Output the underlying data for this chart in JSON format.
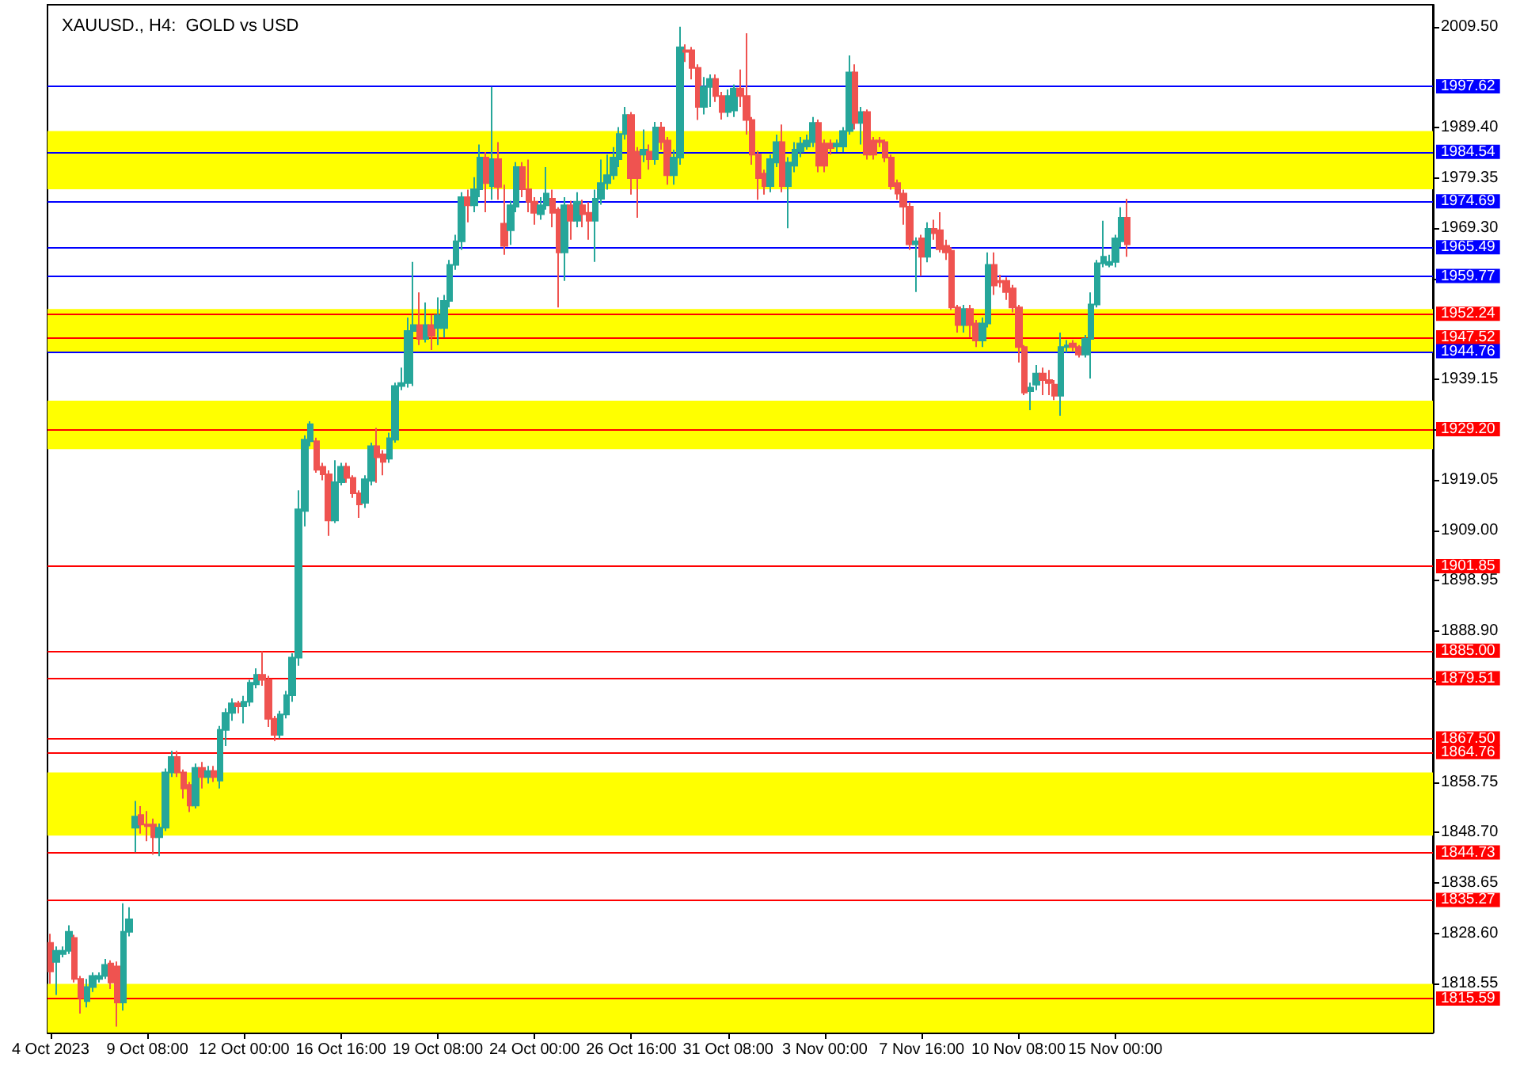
{
  "chart_data": {
    "type": "candlestick",
    "title": "XAUUSD., H4:  GOLD vs USD",
    "categories": [
      "4 Oct 2023",
      null,
      null,
      null,
      null,
      null,
      null,
      null,
      null,
      null,
      null,
      null,
      null,
      null,
      null,
      null,
      "9 Oct 08:00",
      null,
      null,
      null,
      null,
      null,
      null,
      null,
      null,
      null,
      null,
      null,
      null,
      null,
      null,
      null,
      "12 Oct 00:00",
      null,
      null,
      null,
      null,
      null,
      null,
      null,
      null,
      null,
      null,
      null,
      null,
      null,
      null,
      null,
      "16 Oct 16:00",
      null,
      null,
      null,
      null,
      null,
      null,
      null,
      null,
      null,
      null,
      null,
      null,
      null,
      null,
      null,
      "19 Oct 08:00",
      null,
      null,
      null,
      null,
      null,
      null,
      null,
      null,
      null,
      null,
      null,
      null,
      null,
      null,
      null,
      "24 Oct 00:00",
      null,
      null,
      null,
      null,
      null,
      null,
      null,
      null,
      null,
      null,
      null,
      null,
      null,
      null,
      null,
      "26 Oct 16:00",
      null,
      null,
      null,
      null,
      null,
      null,
      null,
      null,
      null,
      null,
      null,
      null,
      null,
      null,
      null,
      "31 Oct 08:00",
      null,
      null,
      null,
      null,
      null,
      null,
      null,
      null,
      null,
      null,
      null,
      null,
      null,
      null,
      null,
      "3 Nov 00:00",
      null,
      null,
      null,
      null,
      null,
      null,
      null,
      null,
      null,
      null,
      null,
      null,
      null,
      null,
      null,
      "7 Nov 16:00",
      null,
      null,
      null,
      null,
      null,
      null,
      null,
      null,
      null,
      null,
      null,
      null,
      null,
      null,
      null,
      "10 Nov 08:00",
      null,
      null,
      null,
      null,
      null,
      null,
      null,
      null,
      null,
      null,
      null,
      null,
      null,
      null,
      null,
      "15 Nov 00:00",
      null,
      null,
      null,
      null,
      null,
      null,
      null,
      null,
      null,
      null,
      null,
      null,
      null,
      null,
      null,
      null,
      null,
      null,
      null,
      null,
      null,
      null,
      null,
      null,
      null,
      null,
      null,
      null,
      null,
      null,
      null,
      null,
      null,
      null,
      null,
      null,
      null,
      null,
      null,
      null,
      null,
      null,
      null,
      null,
      null,
      null,
      null,
      null,
      null,
      null,
      null,
      null
    ],
    "ohlc": [
      [
        1826.7,
        1828.5,
        1818.5,
        1821.0
      ],
      [
        1822.9,
        1826.0,
        1816.3,
        1825.1
      ],
      [
        1824.5,
        1826.0,
        1823.8,
        1825.1
      ],
      [
        1825.1,
        1830.2,
        1824.5,
        1828.9
      ],
      [
        1827.7,
        1828.3,
        1818.8,
        1819.5
      ],
      [
        1819.5,
        1820.1,
        1812.6,
        1815.7
      ],
      [
        1815.1,
        1819.5,
        1813.8,
        1817.9
      ],
      [
        1817.9,
        1820.8,
        1816.9,
        1820.1
      ],
      [
        1819.5,
        1820.8,
        1818.8,
        1820.1
      ],
      [
        1820.1,
        1823.5,
        1819.5,
        1822.3
      ],
      [
        1822.6,
        1823.2,
        1817.5,
        1818.8
      ],
      [
        1822.0,
        1823.0,
        1810.0,
        1814.8
      ],
      [
        1814.8,
        1834.6,
        1813.2,
        1828.9
      ],
      [
        1828.9,
        1833.8,
        1828.0,
        1831.4
      ],
      [
        1849.7,
        1855.0,
        1844.8,
        1851.9
      ],
      [
        1852.2,
        1854.0,
        1848.5,
        1850.3
      ],
      [
        1850.3,
        1853.0,
        1847.0,
        1850.0
      ],
      [
        1850.3,
        1851.5,
        1844.3,
        1847.8
      ],
      [
        1847.8,
        1850.5,
        1844.0,
        1849.7
      ],
      [
        1849.7,
        1861.5,
        1849.0,
        1860.7
      ],
      [
        1860.7,
        1865.0,
        1859.8,
        1863.8
      ],
      [
        1863.8,
        1865.0,
        1859.8,
        1860.7
      ],
      [
        1860.7,
        1861.3,
        1855.5,
        1857.5
      ],
      [
        1858.2,
        1858.8,
        1852.8,
        1854.1
      ],
      [
        1854.1,
        1862.5,
        1853.5,
        1861.6
      ],
      [
        1861.6,
        1862.8,
        1857.5,
        1859.8
      ],
      [
        1859.8,
        1862.0,
        1858.5,
        1861.0
      ],
      [
        1861.0,
        1862.0,
        1858.8,
        1859.8
      ],
      [
        1859.1,
        1870.0,
        1857.5,
        1869.2
      ],
      [
        1869.2,
        1873.5,
        1866.0,
        1872.6
      ],
      [
        1872.6,
        1875.5,
        1871.0,
        1874.5
      ],
      [
        1874.5,
        1875.0,
        1872.5,
        1873.9
      ],
      [
        1873.9,
        1876.0,
        1870.5,
        1874.8
      ],
      [
        1874.8,
        1879.2,
        1873.9,
        1878.6
      ],
      [
        1878.3,
        1881.5,
        1877.5,
        1880.2
      ],
      [
        1880.2,
        1884.9,
        1878.0,
        1879.2
      ],
      [
        1879.2,
        1880.0,
        1869.8,
        1871.4
      ],
      [
        1871.4,
        1872.0,
        1867.0,
        1868.2
      ],
      [
        1868.2,
        1873.0,
        1867.5,
        1872.3
      ],
      [
        1872.3,
        1877.0,
        1871.5,
        1876.1
      ],
      [
        1876.1,
        1884.5,
        1874.8,
        1883.6
      ],
      [
        1883.6,
        1917.0,
        1882.0,
        1913.2
      ],
      [
        1912.9,
        1928.0,
        1909.8,
        1927.1
      ],
      [
        1926.8,
        1930.8,
        1925.8,
        1930.2
      ],
      [
        1926.8,
        1927.5,
        1920.5,
        1921.1
      ],
      [
        1921.7,
        1922.5,
        1919.0,
        1920.2
      ],
      [
        1920.2,
        1921.0,
        1907.9,
        1911.0
      ],
      [
        1911.0,
        1923.0,
        1910.5,
        1918.6
      ],
      [
        1918.6,
        1922.5,
        1918.0,
        1921.7
      ],
      [
        1921.7,
        1922.5,
        1918.5,
        1919.5
      ],
      [
        1919.5,
        1920.0,
        1915.5,
        1916.4
      ],
      [
        1916.4,
        1917.0,
        1911.5,
        1914.2
      ],
      [
        1914.5,
        1920.0,
        1913.5,
        1919.2
      ],
      [
        1918.9,
        1926.5,
        1918.0,
        1925.8
      ],
      [
        1925.8,
        1929.5,
        1918.5,
        1923.6
      ],
      [
        1924.2,
        1925.0,
        1920.0,
        1922.7
      ],
      [
        1923.3,
        1928.5,
        1922.5,
        1927.4
      ],
      [
        1927.1,
        1938.5,
        1926.5,
        1937.8
      ],
      [
        1937.8,
        1941.5,
        1937.0,
        1938.4
      ],
      [
        1938.4,
        1951.5,
        1937.5,
        1948.8
      ],
      [
        1948.8,
        1962.6,
        1937.8,
        1950.0
      ],
      [
        1950.0,
        1956.5,
        1946.0,
        1947.2
      ],
      [
        1947.2,
        1954.5,
        1946.5,
        1950.0
      ],
      [
        1950.0,
        1952.0,
        1945.0,
        1947.8
      ],
      [
        1949.4,
        1955.5,
        1946.0,
        1951.9
      ],
      [
        1949.4,
        1956.0,
        1947.5,
        1954.8
      ],
      [
        1954.8,
        1963.0,
        1953.5,
        1962.0
      ],
      [
        1962.0,
        1968.0,
        1961.0,
        1966.7
      ],
      [
        1966.7,
        1976.5,
        1965.0,
        1975.5
      ],
      [
        1975.5,
        1977.0,
        1970.5,
        1973.9
      ],
      [
        1973.9,
        1979.5,
        1972.5,
        1977.1
      ],
      [
        1977.1,
        1986.0,
        1975.5,
        1983.4
      ],
      [
        1983.4,
        1984.5,
        1972.5,
        1978.3
      ],
      [
        1977.7,
        1997.5,
        1975.0,
        1983.1
      ],
      [
        1983.1,
        1986.5,
        1975.0,
        1977.5
      ],
      [
        1970.2,
        1978.0,
        1964.0,
        1965.8
      ],
      [
        1968.9,
        1974.8,
        1966.0,
        1973.9
      ],
      [
        1973.6,
        1982.5,
        1972.5,
        1981.5
      ],
      [
        1981.5,
        1982.5,
        1975.5,
        1977.1
      ],
      [
        1977.1,
        1983.0,
        1972.5,
        1974.6
      ],
      [
        1974.6,
        1975.5,
        1970.0,
        1972.4
      ],
      [
        1972.1,
        1975.5,
        1971.0,
        1973.9
      ],
      [
        1973.9,
        1981.5,
        1973.0,
        1976.2
      ],
      [
        1975.2,
        1977.0,
        1969.5,
        1972.4
      ],
      [
        1973.0,
        1973.5,
        1953.5,
        1964.5
      ],
      [
        1964.5,
        1975.5,
        1958.8,
        1973.9
      ],
      [
        1973.9,
        1974.8,
        1967.0,
        1970.8
      ],
      [
        1970.8,
        1976.5,
        1969.5,
        1974.6
      ],
      [
        1973.9,
        1975.0,
        1969.5,
        1972.1
      ],
      [
        1972.4,
        1974.5,
        1967.0,
        1970.8
      ],
      [
        1970.8,
        1977.0,
        1962.6,
        1975.2
      ],
      [
        1975.2,
        1983.0,
        1974.0,
        1978.3
      ],
      [
        1978.3,
        1984.0,
        1977.0,
        1979.9
      ],
      [
        1979.9,
        1985.5,
        1979.0,
        1983.4
      ],
      [
        1983.1,
        1989.5,
        1981.5,
        1988.1
      ],
      [
        1988.1,
        1993.5,
        1987.0,
        1991.9
      ],
      [
        1991.9,
        1992.5,
        1976.0,
        1979.3
      ],
      [
        1984.6,
        1985.5,
        1971.4,
        1979.3
      ],
      [
        1984.0,
        1989.0,
        1982.5,
        1985.0
      ],
      [
        1984.6,
        1986.0,
        1981.0,
        1983.1
      ],
      [
        1983.1,
        1990.5,
        1982.0,
        1989.4
      ],
      [
        1989.4,
        1990.5,
        1985.0,
        1986.5
      ],
      [
        1986.8,
        1987.5,
        1978.0,
        1979.9
      ],
      [
        1979.9,
        1985.0,
        1978.0,
        1983.4
      ],
      [
        1983.4,
        2009.5,
        1982.0,
        2005.4
      ],
      [
        2004.8,
        2006.0,
        2002.5,
        2004.5
      ],
      [
        2004.8,
        2005.5,
        1999.0,
        2001.3
      ],
      [
        2001.3,
        2002.0,
        1990.9,
        1993.5
      ],
      [
        1993.5,
        1999.5,
        1992.0,
        1997.5
      ],
      [
        1997.5,
        2000.0,
        1993.5,
        1999.1
      ],
      [
        1999.1,
        2000.0,
        1994.5,
        1995.7
      ],
      [
        1995.7,
        1996.5,
        1991.0,
        1992.5
      ],
      [
        1992.5,
        1997.0,
        1991.5,
        1995.7
      ],
      [
        1992.8,
        1998.0,
        1991.5,
        1997.2
      ],
      [
        1997.2,
        2001.0,
        1993.5,
        1995.7
      ],
      [
        1995.7,
        2008.2,
        1988.0,
        1990.9
      ],
      [
        1990.9,
        1991.5,
        1982.0,
        1984.0
      ],
      [
        1984.0,
        1984.8,
        1975.0,
        1979.3
      ],
      [
        1980.2,
        1981.0,
        1976.0,
        1977.7
      ],
      [
        1977.7,
        1984.0,
        1976.5,
        1983.1
      ],
      [
        1982.4,
        1988.0,
        1981.5,
        1986.5
      ],
      [
        1986.5,
        1990.0,
        1976.5,
        1977.7
      ],
      [
        1977.7,
        1983.5,
        1969.3,
        1982.4
      ],
      [
        1981.8,
        1986.5,
        1980.5,
        1985.0
      ],
      [
        1984.6,
        1987.5,
        1983.5,
        1986.2
      ],
      [
        1985.6,
        1988.0,
        1985.0,
        1986.8
      ],
      [
        1986.5,
        1991.5,
        1985.5,
        1990.3
      ],
      [
        1990.3,
        1991.0,
        1980.5,
        1981.8
      ],
      [
        1986.2,
        1987.0,
        1980.5,
        1981.8
      ],
      [
        1986.2,
        1987.0,
        1984.0,
        1985.3
      ],
      [
        1985.6,
        1987.0,
        1984.5,
        1986.2
      ],
      [
        1985.6,
        1989.5,
        1984.5,
        1988.7
      ],
      [
        1988.7,
        2003.8,
        1988.0,
        2000.4
      ],
      [
        2000.4,
        2002.0,
        1989.0,
        1990.3
      ],
      [
        1990.3,
        1993.5,
        1986.0,
        1992.5
      ],
      [
        1992.5,
        1993.0,
        1983.0,
        1984.0
      ],
      [
        1986.8,
        1987.5,
        1983.0,
        1984.0
      ],
      [
        1986.8,
        1987.5,
        1985.5,
        1986.5
      ],
      [
        1986.5,
        1987.0,
        1982.5,
        1983.4
      ],
      [
        1983.4,
        1984.0,
        1977.0,
        1977.7
      ],
      [
        1978.3,
        1979.0,
        1975.0,
        1976.2
      ],
      [
        1976.2,
        1977.0,
        1970.0,
        1973.6
      ],
      [
        1973.6,
        1974.5,
        1965.0,
        1966.1
      ],
      [
        1966.1,
        1967.5,
        1956.6,
        1966.7
      ],
      [
        1967.3,
        1968.0,
        1959.8,
        1963.6
      ],
      [
        1963.6,
        1970.5,
        1962.5,
        1969.2
      ],
      [
        1969.2,
        1971.0,
        1967.0,
        1968.3
      ],
      [
        1968.9,
        1972.5,
        1964.5,
        1965.1
      ],
      [
        1965.8,
        1967.0,
        1963.0,
        1964.5
      ],
      [
        1964.8,
        1965.5,
        1953.0,
        1953.5
      ],
      [
        1953.5,
        1954.0,
        1948.5,
        1950.0
      ],
      [
        1950.0,
        1954.0,
        1948.5,
        1953.2
      ],
      [
        1953.2,
        1954.0,
        1947.5,
        1950.0
      ],
      [
        1950.3,
        1951.0,
        1945.6,
        1946.9
      ],
      [
        1946.9,
        1951.5,
        1945.6,
        1950.3
      ],
      [
        1950.3,
        1964.5,
        1949.5,
        1962.0
      ],
      [
        1962.0,
        1964.5,
        1956.0,
        1957.9
      ],
      [
        1958.8,
        1960.0,
        1957.5,
        1958.5
      ],
      [
        1958.8,
        1959.5,
        1955.0,
        1956.6
      ],
      [
        1957.3,
        1958.0,
        1952.5,
        1953.5
      ],
      [
        1953.5,
        1954.0,
        1942.5,
        1945.6
      ],
      [
        1945.6,
        1946.0,
        1936.0,
        1936.5
      ],
      [
        1936.8,
        1938.5,
        1933.0,
        1937.5
      ],
      [
        1938.1,
        1942.0,
        1937.0,
        1940.3
      ],
      [
        1940.3,
        1941.5,
        1936.0,
        1939.0
      ],
      [
        1939.0,
        1941.0,
        1936.0,
        1938.4
      ],
      [
        1938.1,
        1939.0,
        1935.0,
        1935.9
      ],
      [
        1935.9,
        1948.5,
        1931.9,
        1945.6
      ],
      [
        1945.6,
        1947.0,
        1944.5,
        1945.9
      ],
      [
        1946.3,
        1947.0,
        1944.8,
        1945.6
      ],
      [
        1945.6,
        1946.0,
        1943.5,
        1944.1
      ],
      [
        1944.1,
        1948.0,
        1943.5,
        1947.2
      ],
      [
        1947.2,
        1956.5,
        1939.3,
        1954.1
      ],
      [
        1954.1,
        1963.0,
        1953.5,
        1962.3
      ],
      [
        1962.3,
        1970.8,
        1961.5,
        1963.6
      ],
      [
        1962.0,
        1964.0,
        1961.5,
        1962.6
      ],
      [
        1962.6,
        1968.0,
        1961.5,
        1967.3
      ],
      [
        1966.7,
        1973.5,
        1965.5,
        1971.4
      ],
      [
        1971.4,
        1975.2,
        1963.6,
        1966.1
      ],
      null,
      null,
      null,
      null,
      null,
      null,
      null,
      null,
      null,
      null,
      null,
      null,
      null,
      null,
      null,
      null,
      null,
      null,
      null,
      null,
      null,
      null,
      null,
      null,
      null,
      null,
      null,
      null,
      null,
      null,
      null,
      null,
      null,
      null,
      null,
      null,
      null,
      null,
      null,
      null,
      null,
      null,
      null,
      null,
      null,
      null,
      null,
      null,
      null,
      null
    ],
    "ylim": [
      1808.8,
      2013.9
    ],
    "yticks": [
      {
        "value": 2009.5,
        "label": "2009.50"
      },
      {
        "value": 1989.4,
        "label": "1989.40"
      },
      {
        "value": 1979.35,
        "label": "1979.35"
      },
      {
        "value": 1969.3,
        "label": "1969.30"
      },
      {
        "value": 1959.25,
        "label": null
      },
      {
        "value": 1939.15,
        "label": "1939.15"
      },
      {
        "value": 1929.1,
        "label": null
      },
      {
        "value": 1919.05,
        "label": "1919.05"
      },
      {
        "value": 1909.0,
        "label": "1909.00"
      },
      {
        "value": 1898.95,
        "label": "1898.95"
      },
      {
        "value": 1888.9,
        "label": "1888.90"
      },
      {
        "value": 1878.85,
        "label": null
      },
      {
        "value": 1858.75,
        "label": "1858.75"
      },
      {
        "value": 1848.7,
        "label": "1848.70"
      },
      {
        "value": 1838.65,
        "label": "1838.65"
      },
      {
        "value": 1828.6,
        "label": "1828.60"
      },
      {
        "value": 1818.55,
        "label": "1818.55"
      }
    ],
    "bands": [
      {
        "axis": "y",
        "from": 1977.1,
        "to": 1988.7,
        "color": "#ffff00"
      },
      {
        "axis": "y",
        "from": 1944.7,
        "to": 1953.2,
        "color": "#ffff00"
      },
      {
        "axis": "y",
        "from": 1925.2,
        "to": 1934.9,
        "color": "#ffff00"
      },
      {
        "axis": "y",
        "from": 1848.1,
        "to": 1860.7,
        "color": "#ffff00"
      },
      {
        "axis": "y",
        "from": 1808.8,
        "to": 1818.5,
        "color": "#ffff00"
      }
    ],
    "ref_lines": [
      {
        "axis": "y",
        "value": 1997.62,
        "label": "1997.62",
        "color": "#0000ff"
      },
      {
        "axis": "y",
        "value": 1984.54,
        "label": "1984.54",
        "color": "#0000ff"
      },
      {
        "axis": "y",
        "value": 1974.69,
        "label": "1974.69",
        "color": "#0000ff"
      },
      {
        "axis": "y",
        "value": 1965.49,
        "label": "1965.49",
        "color": "#0000ff"
      },
      {
        "axis": "y",
        "value": 1959.77,
        "label": "1959.77",
        "color": "#0000ff"
      },
      {
        "axis": "y",
        "value": 1952.24,
        "label": "1952.24",
        "color": "#ff0000"
      },
      {
        "axis": "y",
        "value": 1947.52,
        "label": "1947.52",
        "color": "#ff0000"
      },
      {
        "axis": "y",
        "value": 1944.76,
        "label": "1944.76",
        "color": "#0000ff"
      },
      {
        "axis": "y",
        "value": 1929.2,
        "label": "1929.20",
        "color": "#ff0000"
      },
      {
        "axis": "y",
        "value": 1901.85,
        "label": "1901.85",
        "color": "#ff0000"
      },
      {
        "axis": "y",
        "value": 1885.0,
        "label": "1885.00",
        "color": "#ff0000"
      },
      {
        "axis": "y",
        "value": 1879.51,
        "label": "1879.51",
        "color": "#ff0000"
      },
      {
        "axis": "y",
        "value": 1867.5,
        "label": "1867.50",
        "color": "#ff0000"
      },
      {
        "axis": "y",
        "value": 1864.76,
        "label": "1864.76",
        "color": "#ff0000"
      },
      {
        "axis": "y",
        "value": 1844.73,
        "label": "1844.73",
        "color": "#ff0000"
      },
      {
        "axis": "y",
        "value": 1835.27,
        "label": "1835.27",
        "color": "#ff0000"
      },
      {
        "axis": "y",
        "value": 1815.59,
        "label": "1815.59",
        "color": "#ff0000"
      }
    ],
    "grid": false
  }
}
